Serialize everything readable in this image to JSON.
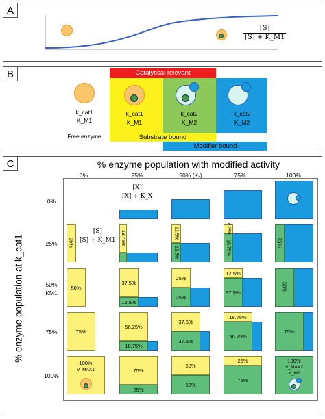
{
  "panel_a": {
    "label": "A",
    "fraction": {
      "numerator": "[S]",
      "denominator": "[S] + K_M1"
    }
  },
  "panel_b": {
    "label": "B",
    "catalytical_relevant": "Catalytical relevant",
    "substrate_bound": "Substrate bound",
    "modifier_bound": "Modifier bound",
    "free_enzyme": "Free enzyme",
    "free": {
      "k": "k_cat1",
      "km": "K_M1"
    },
    "sub": {
      "k": "k_cat1",
      "km": "K_M1"
    },
    "both": {
      "k": "k_cat2",
      "km": "K_M2"
    },
    "mod": {
      "k": "k_cat2",
      "km": "K_M2"
    },
    "colors": {
      "red": "#ee1c1c",
      "yellow": "#fdf11b",
      "green": "#8dc85a",
      "blue": "#1a9be0"
    }
  },
  "panel_c": {
    "label": "C",
    "top_title": "% enzyme population with modified activity",
    "side_title": "% enzyme population at k_cat1",
    "col_headers": [
      "0%",
      "25%",
      "50% (Kₓ)",
      "75%",
      "100%"
    ],
    "row_headers": [
      "0%",
      "25%",
      "50%\nK_M1",
      "75%",
      "100%"
    ],
    "row_header_lines": [
      [
        "0%"
      ],
      [
        "25%"
      ],
      [
        "50%",
        "KM1"
      ],
      [
        "75%"
      ],
      [
        "100%"
      ]
    ],
    "frac_x": {
      "numerator": "[X]",
      "denominator": "[X] + K_X"
    },
    "frac_s": {
      "numerator": "[S]",
      "denominator": "[S] + K_M1"
    },
    "cells": {
      "r1c0": "25%",
      "r1c1_top": "18.75%",
      "r1c1_bot": "6.25%",
      "r1c2_top": "12.5%",
      "r1c2_bot": "12.5%",
      "r1c3_top": "6.25%",
      "r1c3_bot": "18.75%",
      "r1c4": "25%",
      "r2c0": "50%",
      "r2c1_top": "37.5%",
      "r2c1_bot": "12.5%",
      "r2c2_top": "25%",
      "r2c2_bot": "25%",
      "r2c3_top": "12.5%",
      "r2c3_bot": "37.5%",
      "r2c4": "50%",
      "r3c0": "75%",
      "r3c1_top": "56.25%",
      "r3c1_bot": "18.75%",
      "r3c2_top": "37.5%",
      "r3c2_bot": "37.5%",
      "r3c3_top": "18.75%",
      "r3c3_bot": "56.25%",
      "r3c4": "75%",
      "r4c0_a": "100%",
      "r4c0_b": "V_MAX1",
      "r4c1_top": "75%",
      "r4c1_bot": "25%",
      "r4c2_top": "50%",
      "r4c2_bot": "50%",
      "r4c3_top": "25%",
      "r4c3_bot": "75%",
      "r4c4_a": "100%",
      "r4c4_b": "V_MAX2",
      "r4c4_c": "K_M2"
    }
  }
}
